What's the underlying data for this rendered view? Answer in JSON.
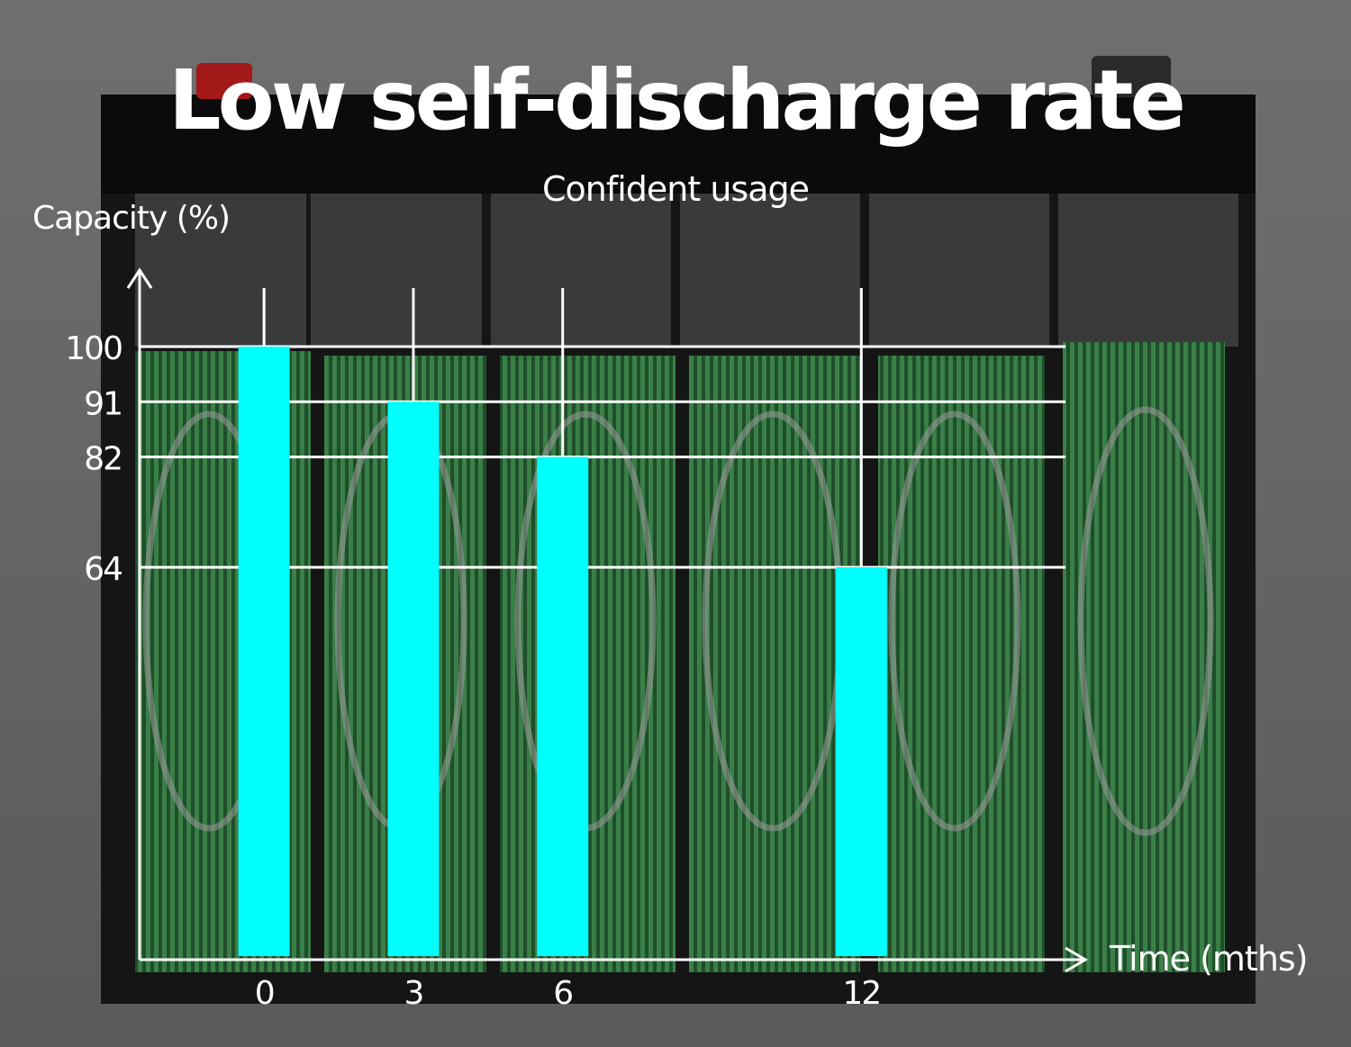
{
  "title": "Low self-discharge rate",
  "subtitle": "Confident usage",
  "colors": {
    "bar": "#00ffff",
    "axis": "#ffffff",
    "plate_green": "#2f6e3a",
    "background": "#6a6a6a"
  },
  "chart_data": {
    "type": "bar",
    "title": "Low self-discharge rate",
    "subtitle": "Confident usage",
    "xlabel": "Time (mths)",
    "ylabel": "Capacity (%)",
    "x": [
      0,
      3,
      6,
      12
    ],
    "categories": [
      "0",
      "3",
      "6",
      "12"
    ],
    "values": [
      100,
      91,
      82,
      64
    ],
    "y_ticks": [
      100,
      91,
      82,
      64
    ],
    "ylim": [
      0,
      100
    ],
    "xlim": [
      -2.5,
      16.5
    ],
    "grid": true
  }
}
